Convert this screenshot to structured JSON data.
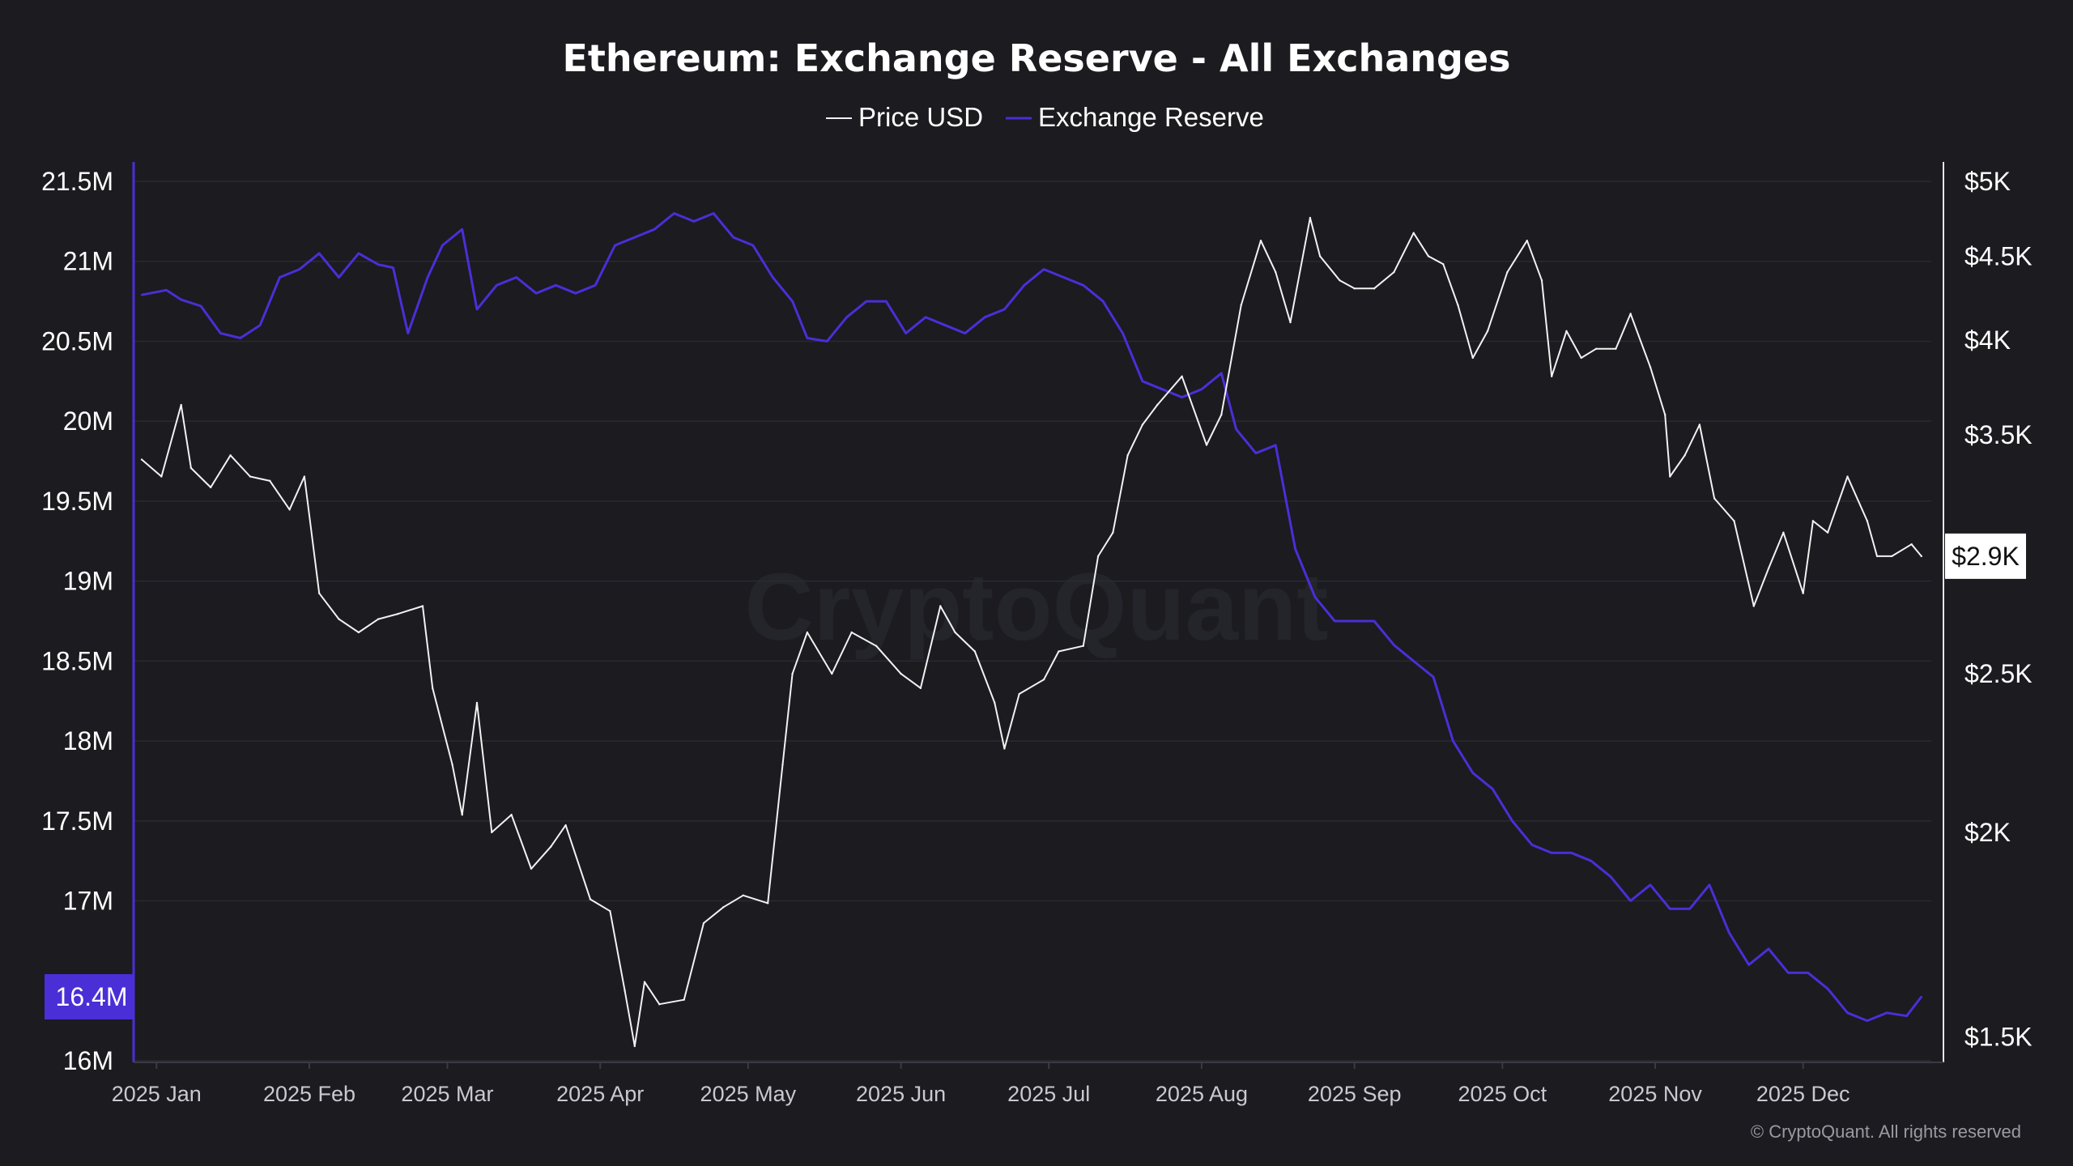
{
  "colors": {
    "background": "#1b1b20",
    "price": "#f2f2f2",
    "reserve": "#4a2fd6"
  },
  "footer": {
    "copyright": "© CryptoQuant. All rights reserved",
    "watermark": "CryptoQuant"
  },
  "chart_data": {
    "type": "line",
    "title": "Ethereum: Exchange Reserve - All Exchanges",
    "legend": {
      "position": "top-center",
      "items": [
        "Price USD",
        "Exchange Reserve"
      ]
    },
    "x_axis": {
      "start": "2024-12-29",
      "end": "2025-12-27",
      "ticks": [
        {
          "date": "2025-01-01",
          "label": "2025 Jan"
        },
        {
          "date": "2025-02-01",
          "label": "2025 Feb"
        },
        {
          "date": "2025-03-01",
          "label": "2025 Mar"
        },
        {
          "date": "2025-04-01",
          "label": "2025 Apr"
        },
        {
          "date": "2025-05-01",
          "label": "2025 May"
        },
        {
          "date": "2025-06-01",
          "label": "2025 Jun"
        },
        {
          "date": "2025-07-01",
          "label": "2025 Jul"
        },
        {
          "date": "2025-08-01",
          "label": "2025 Aug"
        },
        {
          "date": "2025-09-01",
          "label": "2025 Sep"
        },
        {
          "date": "2025-10-01",
          "label": "2025 Oct"
        },
        {
          "date": "2025-11-01",
          "label": "2025 Nov"
        },
        {
          "date": "2025-12-01",
          "label": "2025 Dec"
        }
      ]
    },
    "y_left": {
      "name": "Exchange Reserve",
      "range": [
        16000000,
        21500000
      ],
      "ticks": [
        {
          "value": 21500000,
          "label": "21.5M"
        },
        {
          "value": 21000000,
          "label": "21M"
        },
        {
          "value": 20500000,
          "label": "20.5M"
        },
        {
          "value": 20000000,
          "label": "20M"
        },
        {
          "value": 19500000,
          "label": "19.5M"
        },
        {
          "value": 19000000,
          "label": "19M"
        },
        {
          "value": 18500000,
          "label": "18.5M"
        },
        {
          "value": 18000000,
          "label": "18M"
        },
        {
          "value": 17500000,
          "label": "17.5M"
        },
        {
          "value": 17000000,
          "label": "17M"
        },
        {
          "value": 16000000,
          "label": "16M"
        }
      ],
      "current": {
        "value": 16400000,
        "label": "16.4M"
      }
    },
    "y_right": {
      "name": "Price USD",
      "scale": "log",
      "range": [
        1450,
        5000
      ],
      "ticks": [
        {
          "value": 5000,
          "label": "$5K"
        },
        {
          "value": 4500,
          "label": "$4.5K"
        },
        {
          "value": 4000,
          "label": "$4K"
        },
        {
          "value": 3500,
          "label": "$3.5K"
        },
        {
          "value": 2500,
          "label": "$2.5K"
        },
        {
          "value": 2000,
          "label": "$2K"
        },
        {
          "value": 1500,
          "label": "$1.5K"
        }
      ],
      "current": {
        "value": 2950,
        "label": "$2.9K"
      }
    },
    "series": [
      {
        "name": "Price USD",
        "axis": "right",
        "color": "#f2f2f2",
        "points": [
          [
            "2024-12-29",
            3380
          ],
          [
            "2025-01-02",
            3300
          ],
          [
            "2025-01-06",
            3650
          ],
          [
            "2025-01-08",
            3340
          ],
          [
            "2025-01-12",
            3250
          ],
          [
            "2025-01-16",
            3400
          ],
          [
            "2025-01-20",
            3300
          ],
          [
            "2025-01-24",
            3280
          ],
          [
            "2025-01-28",
            3150
          ],
          [
            "2025-01-31",
            3300
          ],
          [
            "2025-02-03",
            2800
          ],
          [
            "2025-02-07",
            2700
          ],
          [
            "2025-02-11",
            2650
          ],
          [
            "2025-02-15",
            2700
          ],
          [
            "2025-02-19",
            2720
          ],
          [
            "2025-02-24",
            2750
          ],
          [
            "2025-02-26",
            2450
          ],
          [
            "2025-03-02",
            2200
          ],
          [
            "2025-03-04",
            2050
          ],
          [
            "2025-03-07",
            2400
          ],
          [
            "2025-03-10",
            2000
          ],
          [
            "2025-03-14",
            2050
          ],
          [
            "2025-03-18",
            1900
          ],
          [
            "2025-03-22",
            1960
          ],
          [
            "2025-03-25",
            2020
          ],
          [
            "2025-03-30",
            1820
          ],
          [
            "2025-04-03",
            1790
          ],
          [
            "2025-04-06",
            1600
          ],
          [
            "2025-04-08",
            1480
          ],
          [
            "2025-04-10",
            1620
          ],
          [
            "2025-04-13",
            1570
          ],
          [
            "2025-04-18",
            1580
          ],
          [
            "2025-04-22",
            1760
          ],
          [
            "2025-04-26",
            1800
          ],
          [
            "2025-04-30",
            1830
          ],
          [
            "2025-05-05",
            1810
          ],
          [
            "2025-05-08",
            2200
          ],
          [
            "2025-05-10",
            2500
          ],
          [
            "2025-05-13",
            2650
          ],
          [
            "2025-05-18",
            2500
          ],
          [
            "2025-05-22",
            2650
          ],
          [
            "2025-05-27",
            2600
          ],
          [
            "2025-06-01",
            2500
          ],
          [
            "2025-06-05",
            2450
          ],
          [
            "2025-06-09",
            2750
          ],
          [
            "2025-06-12",
            2650
          ],
          [
            "2025-06-16",
            2580
          ],
          [
            "2025-06-20",
            2400
          ],
          [
            "2025-06-22",
            2250
          ],
          [
            "2025-06-25",
            2430
          ],
          [
            "2025-06-30",
            2480
          ],
          [
            "2025-07-03",
            2580
          ],
          [
            "2025-07-08",
            2600
          ],
          [
            "2025-07-11",
            2950
          ],
          [
            "2025-07-14",
            3050
          ],
          [
            "2025-07-17",
            3400
          ],
          [
            "2025-07-20",
            3550
          ],
          [
            "2025-07-23",
            3650
          ],
          [
            "2025-07-28",
            3800
          ],
          [
            "2025-08-02",
            3450
          ],
          [
            "2025-08-05",
            3600
          ],
          [
            "2025-08-09",
            4200
          ],
          [
            "2025-08-13",
            4600
          ],
          [
            "2025-08-16",
            4400
          ],
          [
            "2025-08-19",
            4100
          ],
          [
            "2025-08-23",
            4750
          ],
          [
            "2025-08-25",
            4500
          ],
          [
            "2025-08-29",
            4350
          ],
          [
            "2025-09-01",
            4300
          ],
          [
            "2025-09-05",
            4300
          ],
          [
            "2025-09-09",
            4400
          ],
          [
            "2025-09-13",
            4650
          ],
          [
            "2025-09-16",
            4500
          ],
          [
            "2025-09-19",
            4450
          ],
          [
            "2025-09-22",
            4200
          ],
          [
            "2025-09-25",
            3900
          ],
          [
            "2025-09-28",
            4050
          ],
          [
            "2025-10-02",
            4400
          ],
          [
            "2025-10-06",
            4600
          ],
          [
            "2025-10-09",
            4350
          ],
          [
            "2025-10-11",
            3800
          ],
          [
            "2025-10-14",
            4050
          ],
          [
            "2025-10-17",
            3900
          ],
          [
            "2025-10-20",
            3950
          ],
          [
            "2025-10-24",
            3950
          ],
          [
            "2025-10-27",
            4150
          ],
          [
            "2025-10-31",
            3850
          ],
          [
            "2025-11-03",
            3600
          ],
          [
            "2025-11-04",
            3300
          ],
          [
            "2025-11-07",
            3400
          ],
          [
            "2025-11-10",
            3550
          ],
          [
            "2025-11-13",
            3200
          ],
          [
            "2025-11-17",
            3100
          ],
          [
            "2025-11-21",
            2750
          ],
          [
            "2025-11-24",
            2900
          ],
          [
            "2025-11-27",
            3050
          ],
          [
            "2025-12-01",
            2800
          ],
          [
            "2025-12-03",
            3100
          ],
          [
            "2025-12-06",
            3050
          ],
          [
            "2025-12-10",
            3300
          ],
          [
            "2025-12-14",
            3100
          ],
          [
            "2025-12-16",
            2950
          ],
          [
            "2025-12-19",
            2950
          ],
          [
            "2025-12-23",
            3000
          ],
          [
            "2025-12-25",
            2950
          ]
        ]
      },
      {
        "name": "Exchange Reserve",
        "axis": "left",
        "color": "#4a2fd6",
        "points": [
          [
            "2024-12-29",
            20790000
          ],
          [
            "2025-01-03",
            20820000
          ],
          [
            "2025-01-06",
            20760000
          ],
          [
            "2025-01-10",
            20720000
          ],
          [
            "2025-01-14",
            20550000
          ],
          [
            "2025-01-18",
            20520000
          ],
          [
            "2025-01-22",
            20600000
          ],
          [
            "2025-01-26",
            20900000
          ],
          [
            "2025-01-30",
            20950000
          ],
          [
            "2025-02-03",
            21050000
          ],
          [
            "2025-02-07",
            20900000
          ],
          [
            "2025-02-11",
            21050000
          ],
          [
            "2025-02-15",
            20980000
          ],
          [
            "2025-02-18",
            20960000
          ],
          [
            "2025-02-21",
            20550000
          ],
          [
            "2025-02-25",
            20900000
          ],
          [
            "2025-02-28",
            21100000
          ],
          [
            "2025-03-04",
            21200000
          ],
          [
            "2025-03-07",
            20700000
          ],
          [
            "2025-03-11",
            20850000
          ],
          [
            "2025-03-15",
            20900000
          ],
          [
            "2025-03-19",
            20800000
          ],
          [
            "2025-03-23",
            20850000
          ],
          [
            "2025-03-27",
            20800000
          ],
          [
            "2025-03-31",
            20850000
          ],
          [
            "2025-04-04",
            21100000
          ],
          [
            "2025-04-08",
            21150000
          ],
          [
            "2025-04-12",
            21200000
          ],
          [
            "2025-04-16",
            21300000
          ],
          [
            "2025-04-20",
            21250000
          ],
          [
            "2025-04-24",
            21300000
          ],
          [
            "2025-04-28",
            21150000
          ],
          [
            "2025-05-02",
            21100000
          ],
          [
            "2025-05-06",
            20900000
          ],
          [
            "2025-05-10",
            20750000
          ],
          [
            "2025-05-13",
            20520000
          ],
          [
            "2025-05-17",
            20500000
          ],
          [
            "2025-05-21",
            20650000
          ],
          [
            "2025-05-25",
            20750000
          ],
          [
            "2025-05-29",
            20750000
          ],
          [
            "2025-06-02",
            20550000
          ],
          [
            "2025-06-06",
            20650000
          ],
          [
            "2025-06-10",
            20600000
          ],
          [
            "2025-06-14",
            20550000
          ],
          [
            "2025-06-18",
            20650000
          ],
          [
            "2025-06-22",
            20700000
          ],
          [
            "2025-06-26",
            20850000
          ],
          [
            "2025-06-30",
            20950000
          ],
          [
            "2025-07-04",
            20900000
          ],
          [
            "2025-07-08",
            20850000
          ],
          [
            "2025-07-12",
            20750000
          ],
          [
            "2025-07-16",
            20550000
          ],
          [
            "2025-07-20",
            20250000
          ],
          [
            "2025-07-24",
            20200000
          ],
          [
            "2025-07-28",
            20150000
          ],
          [
            "2025-08-01",
            20200000
          ],
          [
            "2025-08-05",
            20300000
          ],
          [
            "2025-08-08",
            19950000
          ],
          [
            "2025-08-12",
            19800000
          ],
          [
            "2025-08-16",
            19850000
          ],
          [
            "2025-08-20",
            19200000
          ],
          [
            "2025-08-24",
            18900000
          ],
          [
            "2025-08-28",
            18750000
          ],
          [
            "2025-09-01",
            18750000
          ],
          [
            "2025-09-05",
            18750000
          ],
          [
            "2025-09-09",
            18600000
          ],
          [
            "2025-09-13",
            18500000
          ],
          [
            "2025-09-17",
            18400000
          ],
          [
            "2025-09-21",
            18000000
          ],
          [
            "2025-09-25",
            17800000
          ],
          [
            "2025-09-29",
            17700000
          ],
          [
            "2025-10-03",
            17500000
          ],
          [
            "2025-10-07",
            17350000
          ],
          [
            "2025-10-11",
            17300000
          ],
          [
            "2025-10-15",
            17300000
          ],
          [
            "2025-10-19",
            17250000
          ],
          [
            "2025-10-23",
            17150000
          ],
          [
            "2025-10-27",
            17000000
          ],
          [
            "2025-10-31",
            17100000
          ],
          [
            "2025-11-04",
            16950000
          ],
          [
            "2025-11-08",
            16950000
          ],
          [
            "2025-11-12",
            17100000
          ],
          [
            "2025-11-16",
            16800000
          ],
          [
            "2025-11-20",
            16600000
          ],
          [
            "2025-11-24",
            16700000
          ],
          [
            "2025-11-28",
            16550000
          ],
          [
            "2025-12-02",
            16550000
          ],
          [
            "2025-12-06",
            16450000
          ],
          [
            "2025-12-10",
            16300000
          ],
          [
            "2025-12-14",
            16250000
          ],
          [
            "2025-12-18",
            16300000
          ],
          [
            "2025-12-22",
            16280000
          ],
          [
            "2025-12-25",
            16400000
          ]
        ]
      }
    ]
  }
}
